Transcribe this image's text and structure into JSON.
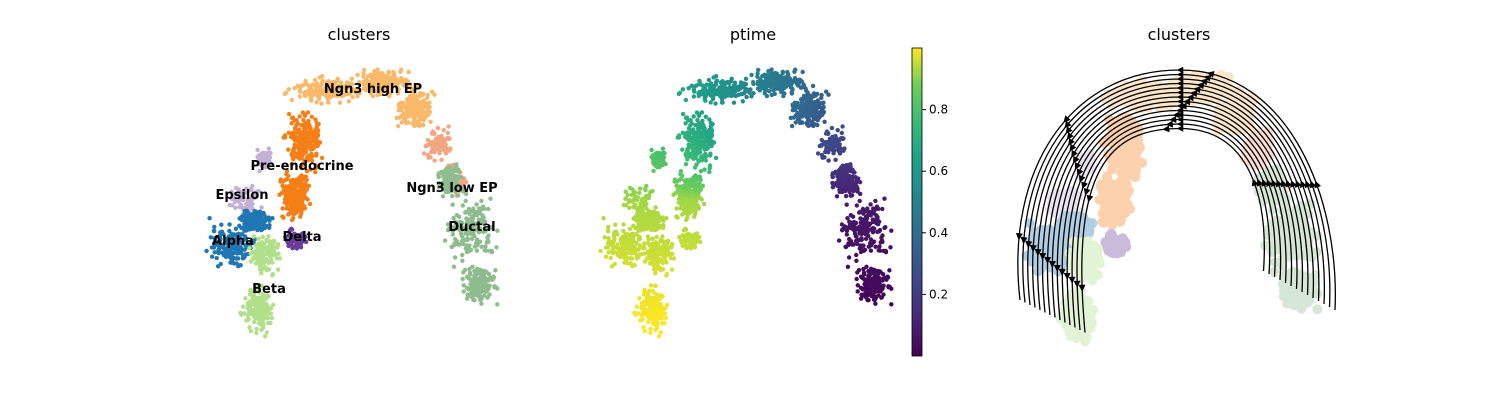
{
  "chart_data": [
    {
      "type": "scatter",
      "title": "clusters",
      "xlabel": "",
      "ylabel": "",
      "legend": "on data",
      "clusters": [
        {
          "name": "Ngn3 high EP",
          "color": "#f9b96a"
        },
        {
          "name": "Pre-endocrine",
          "color": "#f57f17"
        },
        {
          "name": "Epsilon",
          "color": "#c5b0d5"
        },
        {
          "name": "Alpha",
          "color": "#1f77b4"
        },
        {
          "name": "Delta",
          "color": "#6a3d9a"
        },
        {
          "name": "Beta",
          "color": "#b2df8a"
        },
        {
          "name": "Ngn3 low EP",
          "color": "#f4a582"
        },
        {
          "name": "Ductal",
          "color": "#8fbc8f"
        }
      ]
    },
    {
      "type": "scatter",
      "title": "ptime",
      "xlabel": "",
      "ylabel": "",
      "colorbar": {
        "colormap": "viridis",
        "range": [
          0,
          1
        ],
        "ticks": [
          0.2,
          0.4,
          0.6,
          0.8
        ],
        "tick_labels": [
          "0.2",
          "0.4",
          "0.6",
          "0.8"
        ]
      }
    },
    {
      "type": "scatter",
      "title": "clusters",
      "xlabel": "",
      "ylabel": "",
      "overlay": "velocity stream lines with arrows"
    }
  ]
}
